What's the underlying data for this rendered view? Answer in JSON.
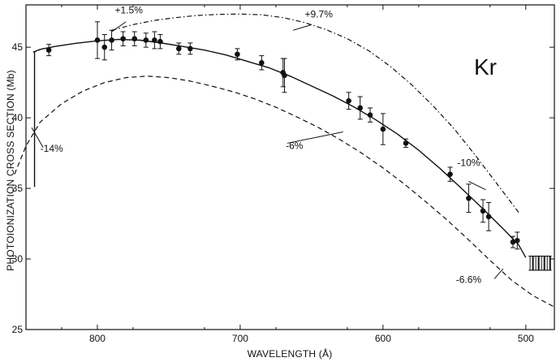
{
  "chart_data": {
    "type": "line",
    "element_label": "Kr",
    "xlabel": "WAVELENGTH (Å)",
    "ylabel": "PHOTOIONIZATION CROSS SECTION  (Mb)",
    "xlim": [
      850,
      480
    ],
    "ylim": [
      25,
      48
    ],
    "x_reversed": true,
    "xticks": [
      800,
      700,
      600,
      500
    ],
    "xtick_labels": [
      "800",
      "700",
      "600",
      "500"
    ],
    "yticks": [
      25,
      30,
      35,
      40,
      45
    ],
    "ytick_labels": [
      "25",
      "30",
      "35",
      "40",
      "45"
    ],
    "grid": false,
    "series": [
      {
        "style": "solid",
        "x": [
          845,
          840,
          830,
          815,
          800,
          785,
          770,
          755,
          740,
          725,
          710,
          695,
          680,
          665,
          650,
          635,
          620,
          605,
          590,
          575,
          560,
          545,
          530,
          515,
          505,
          500
        ],
        "y": [
          44.65,
          44.85,
          45.05,
          45.28,
          45.45,
          45.55,
          45.5,
          45.3,
          45.05,
          44.8,
          44.45,
          44.0,
          43.55,
          42.95,
          42.25,
          41.55,
          40.75,
          39.85,
          38.85,
          37.7,
          36.4,
          35.0,
          33.55,
          32.05,
          31.0,
          30.1
        ]
      },
      {
        "style": "dashed",
        "x": [
          858,
          850,
          840,
          825,
          810,
          795,
          780,
          765,
          750,
          735,
          720,
          705,
          690,
          675,
          660,
          645,
          630,
          615,
          600,
          585,
          570,
          555,
          540,
          525,
          510,
          495,
          480
        ],
        "y": [
          36.0,
          38.0,
          39.7,
          41.0,
          41.9,
          42.5,
          42.85,
          42.95,
          42.85,
          42.6,
          42.25,
          41.85,
          41.35,
          40.75,
          40.05,
          39.3,
          38.45,
          37.5,
          36.45,
          35.3,
          34.05,
          32.75,
          31.35,
          29.9,
          28.5,
          27.4,
          26.6
        ]
      },
      {
        "style": "dash-dot",
        "x": [
          790,
          775,
          760,
          745,
          730,
          715,
          700,
          685,
          670,
          655,
          640,
          625,
          610,
          595,
          580,
          565,
          550,
          535,
          520,
          505
        ],
        "y": [
          46.2,
          46.6,
          46.9,
          47.1,
          47.25,
          47.33,
          47.35,
          47.3,
          47.1,
          46.75,
          46.25,
          45.6,
          44.75,
          43.65,
          42.35,
          40.85,
          39.2,
          37.3,
          35.3,
          33.3
        ]
      }
    ],
    "data_points": {
      "x": [
        834,
        800,
        795,
        790,
        782,
        774,
        766,
        760,
        756,
        743,
        735,
        702,
        685,
        670,
        669,
        624,
        616,
        609,
        600,
        584,
        553,
        540,
        530,
        526,
        509,
        506
      ],
      "y": [
        44.8,
        45.5,
        45.0,
        45.5,
        45.6,
        45.6,
        45.5,
        45.5,
        45.4,
        44.9,
        44.9,
        44.5,
        43.9,
        43.2,
        43.0,
        41.2,
        40.7,
        40.2,
        39.2,
        38.2,
        36.0,
        34.3,
        33.4,
        33.0,
        31.2,
        31.3
      ],
      "error": [
        0.4,
        1.3,
        0.9,
        0.7,
        0.5,
        0.5,
        0.5,
        0.6,
        0.5,
        0.4,
        0.4,
        0.4,
        0.5,
        1.0,
        1.2,
        0.6,
        0.8,
        0.5,
        1.1,
        0.3,
        0.5,
        1.0,
        0.8,
        1.0,
        0.4,
        0.6
      ]
    },
    "annotations": [
      {
        "text": "+1.5%",
        "x": 778,
        "y": 47.4,
        "leader": [
          [
            780,
            46.8
          ],
          [
            790,
            46.1
          ]
        ]
      },
      {
        "text": "+9.7%",
        "x": 645,
        "y": 47.1,
        "leader": [
          [
            650,
            46.6
          ],
          [
            663,
            46.2
          ]
        ]
      },
      {
        "text": "-14%",
        "x": 832,
        "y": 37.6,
        "leader": [
          [
            838,
            37.9
          ],
          [
            846,
            39.3
          ]
        ]
      },
      {
        "text": "-6%",
        "x": 662,
        "y": 37.8,
        "leader": [
          [
            667,
            38.2
          ],
          [
            628,
            39.0
          ]
        ]
      },
      {
        "text": "-10%",
        "x": 540,
        "y": 36.6,
        "leader": [
          [
            540,
            35.5
          ],
          [
            528,
            34.9
          ]
        ]
      },
      {
        "text": "-6.6%",
        "x": 540,
        "y": 28.3,
        "leader": [
          [
            522,
            28.6
          ],
          [
            516,
            29.3
          ]
        ]
      }
    ],
    "left_edge_line": {
      "x": 844,
      "y": [
        35.1,
        44.7
      ]
    },
    "right_edge_hatch": {
      "x": [
        498,
        482
      ],
      "y": [
        29.2,
        30.2
      ]
    }
  }
}
